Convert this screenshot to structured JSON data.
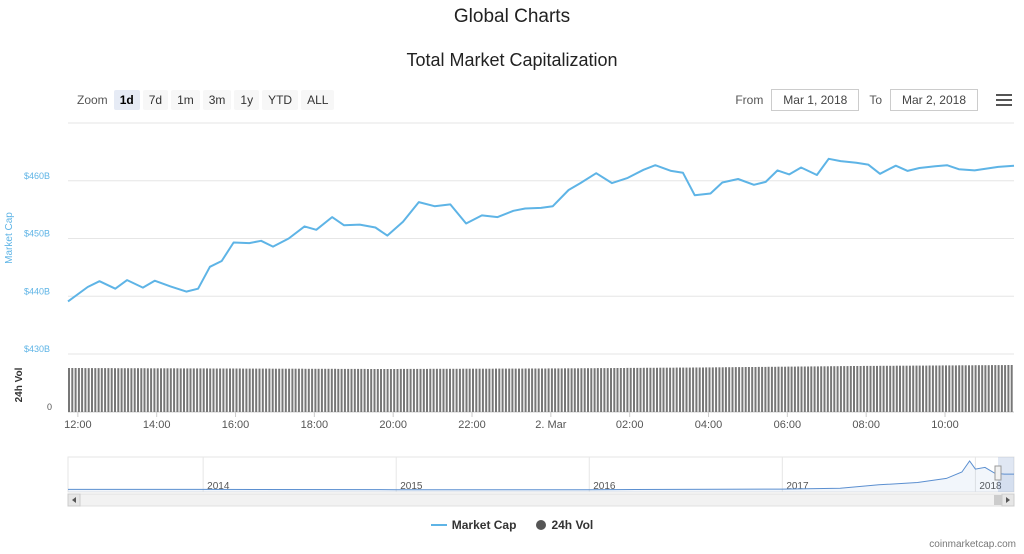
{
  "page_title": "Global Charts",
  "zoom": {
    "label": "Zoom",
    "buttons": [
      "1d",
      "7d",
      "1m",
      "3m",
      "1y",
      "YTD",
      "ALL"
    ],
    "active": "1d"
  },
  "range": {
    "from_label": "From",
    "from_value": "Mar 1, 2018",
    "to_label": "To",
    "to_value": "Mar 2, 2018"
  },
  "legend": {
    "market_cap": "Market Cap",
    "volume": "24h Vol"
  },
  "credit": "coinmarketcap.com",
  "colors": {
    "market_cap": "#5eb4e6",
    "volume": "#555555",
    "navigator": "#5b8fd0"
  },
  "chart_data": [
    {
      "type": "line",
      "title": "Total Market Capitalization",
      "ylabel": "Market Cap",
      "ylim": [
        430,
        470
      ],
      "yticks": [
        430,
        440,
        450,
        460
      ],
      "ytick_labels": [
        "$430B",
        "$440B",
        "$450B",
        "$460B"
      ],
      "x_unit": "hours since 2018-03-01 11:45",
      "xticks": [
        0.25,
        2.25,
        4.25,
        6.25,
        8.25,
        10.25,
        12.25,
        14.25,
        16.25,
        18.25,
        20.25,
        22.25
      ],
      "xtick_labels": [
        "12:00",
        "14:00",
        "16:00",
        "18:00",
        "20:00",
        "22:00",
        "2. Mar",
        "02:00",
        "04:00",
        "06:00",
        "08:00",
        "10:00"
      ],
      "xlim": [
        0,
        24
      ],
      "series": [
        {
          "name": "Market Cap",
          "x": [
            0,
            0.5,
            0.8,
            1.2,
            1.5,
            1.9,
            2.2,
            2.6,
            3.0,
            3.3,
            3.6,
            3.9,
            4.2,
            4.6,
            4.9,
            5.2,
            5.6,
            6.0,
            6.3,
            6.7,
            7.0,
            7.4,
            7.8,
            8.1,
            8.5,
            8.9,
            9.3,
            9.7,
            10.1,
            10.5,
            10.9,
            11.3,
            11.6,
            12.0,
            12.3,
            12.7,
            13.0,
            13.4,
            13.8,
            14.2,
            14.6,
            14.9,
            15.3,
            15.6,
            15.9,
            16.3,
            16.6,
            17.0,
            17.4,
            17.7,
            18.0,
            18.3,
            18.6,
            19.0,
            19.3,
            19.6,
            20.0,
            20.3,
            20.6,
            21.0,
            21.3,
            21.6,
            22.0,
            22.3,
            22.6,
            23.0,
            23.3,
            23.6,
            24.0
          ],
          "values": [
            439.1,
            441.6,
            442.6,
            441.3,
            442.8,
            441.5,
            442.7,
            441.7,
            440.8,
            441.3,
            445.1,
            446.1,
            449.3,
            449.2,
            449.6,
            448.6,
            450.0,
            452.1,
            451.5,
            453.7,
            452.3,
            452.4,
            451.9,
            450.5,
            452.9,
            456.3,
            455.6,
            455.9,
            452.6,
            454.0,
            453.7,
            454.8,
            455.2,
            455.3,
            455.6,
            458.4,
            459.6,
            461.3,
            459.6,
            460.5,
            461.9,
            462.7,
            461.7,
            461.4,
            457.5,
            457.8,
            459.7,
            460.3,
            459.3,
            459.8,
            461.8,
            461.1,
            462.3,
            461.0,
            463.8,
            463.4,
            463.1,
            462.8,
            461.2,
            462.6,
            461.7,
            462.2,
            462.5,
            462.7,
            462.0,
            461.8,
            462.1,
            462.4,
            462.6
          ]
        }
      ]
    },
    {
      "type": "bar",
      "ylabel": "24h Vol",
      "ytick_labels": [
        "0"
      ],
      "xlim": [
        0,
        24
      ],
      "series": [
        {
          "name": "24h Vol",
          "x": [
            0,
            4,
            8,
            12,
            16,
            20,
            24
          ],
          "values": [
            0.88,
            0.87,
            0.86,
            0.87,
            0.89,
            0.92,
            0.94
          ]
        }
      ]
    },
    {
      "type": "area",
      "role": "navigator",
      "xtick_labels": [
        "2014",
        "2015",
        "2016",
        "2017",
        "2018"
      ],
      "xlim": [
        2013.3,
        2018.2
      ],
      "series": [
        {
          "x": [
            2013.3,
            2014.0,
            2015.0,
            2016.0,
            2017.0,
            2017.3,
            2017.5,
            2017.7,
            2017.85,
            2017.93,
            2017.97,
            2018.0,
            2018.05,
            2018.1,
            2018.15,
            2018.2
          ],
          "values": [
            0.02,
            0.02,
            0.01,
            0.01,
            0.03,
            0.06,
            0.18,
            0.26,
            0.4,
            0.62,
            1.0,
            0.72,
            0.78,
            0.58,
            0.55,
            0.55
          ]
        }
      ]
    }
  ]
}
